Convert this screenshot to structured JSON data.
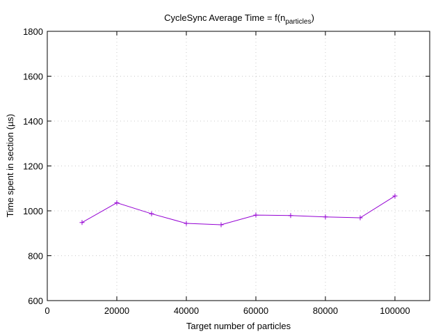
{
  "chart_data": {
    "type": "line",
    "title": {
      "main": "CycleSync Average Time = f(n",
      "sub": "particles",
      "tail": ")"
    },
    "xlabel": "Target number of particles",
    "ylabel": "Time spent in section (µs)",
    "xlim": [
      0,
      110000
    ],
    "ylim": [
      600,
      1800
    ],
    "xticks": [
      0,
      20000,
      40000,
      60000,
      80000,
      100000
    ],
    "yticks": [
      600,
      800,
      1000,
      1200,
      1400,
      1600,
      1800
    ],
    "grid": true,
    "series": [
      {
        "color": "#9400d3",
        "marker": "plus",
        "x": [
          10000,
          20000,
          30000,
          40000,
          50000,
          60000,
          70000,
          80000,
          90000,
          100000
        ],
        "y": [
          948,
          1036,
          987,
          944,
          938,
          981,
          979,
          973,
          969,
          1066
        ]
      }
    ]
  }
}
